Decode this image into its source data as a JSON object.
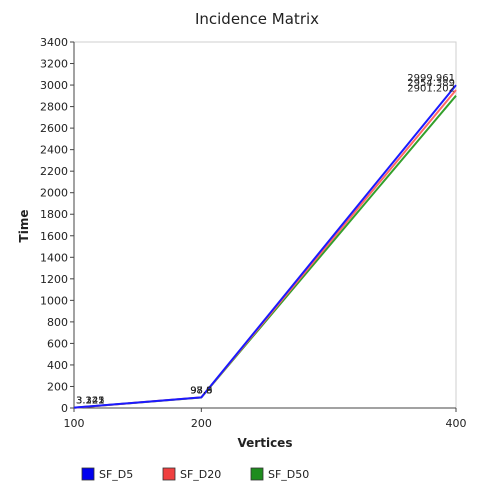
{
  "chart_data": {
    "type": "line",
    "title": "Incidence Matrix",
    "xlabel": "Vertices",
    "ylabel": "Time",
    "x": [
      100,
      200,
      400
    ],
    "xlim": [
      100,
      400
    ],
    "ylim": [
      0,
      3400
    ],
    "x_ticks": [
      "100",
      "200",
      "400"
    ],
    "y_ticks": [
      "0",
      "200",
      "400",
      "600",
      "800",
      "1000",
      "1200",
      "1400",
      "1600",
      "1800",
      "2000",
      "2200",
      "2400",
      "2600",
      "2800",
      "3000",
      "3200",
      "3400"
    ],
    "grid": false,
    "legend_position": "bottom",
    "series": [
      {
        "name": "SF_D5",
        "color": "#1a1aff",
        "legend_color": "#0000ee",
        "values": [
          3.345,
          98.6,
          2999.961
        ],
        "labels": [
          "3.345",
          "98.6",
          "2999.961"
        ]
      },
      {
        "name": "SF_D20",
        "color": "#ff6666",
        "legend_color": "#f04040",
        "values": [
          3.221,
          98.3,
          2954.389
        ],
        "labels": [
          "3.221",
          "98.3",
          "2954.389"
        ]
      },
      {
        "name": "SF_D50",
        "color": "#33a02c",
        "legend_color": "#1e8c1e",
        "values": [
          3.122,
          97.9,
          2901.202
        ],
        "labels": [
          "3.122",
          "97.9",
          "2901.202"
        ]
      }
    ]
  }
}
